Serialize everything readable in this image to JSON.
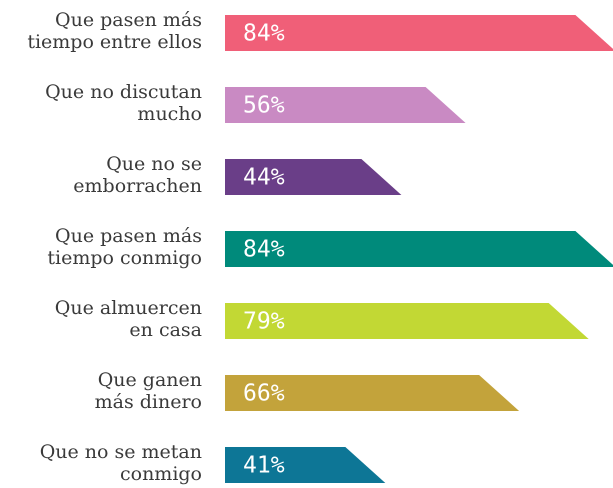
{
  "chart_data": {
    "type": "bar",
    "categories": [
      "Que pasen más\ntiempo entre ellos",
      "Que no discutan\nmucho",
      "Que no se\nemborrachen",
      "Que pasen más\ntiempo conmigo",
      "Que almuercen\nen casa",
      "Que ganen\nmás dinero",
      "Que no se metan\nconmigo"
    ],
    "values": [
      84,
      56,
      44,
      84,
      79,
      66,
      41
    ],
    "value_labels": [
      "84%",
      "56%",
      "44%",
      "84%",
      "79%",
      "66%",
      "41%"
    ],
    "colors": [
      "#f05f78",
      "#c98ac3",
      "#6a3e88",
      "#008a7b",
      "#c2d834",
      "#c3a33b",
      "#0d7696"
    ]
  }
}
